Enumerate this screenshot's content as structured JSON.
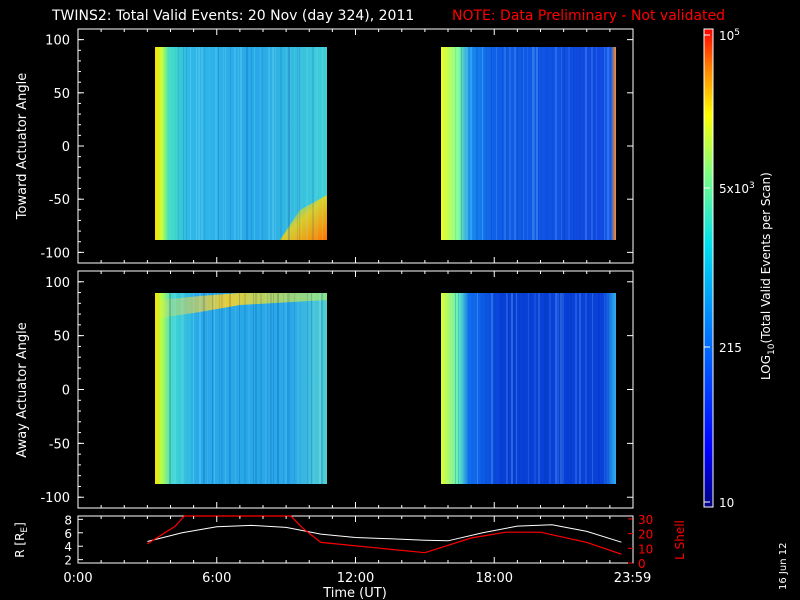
{
  "title": "TWINS2: Total Valid Events: 20 Nov (day 324), 2011",
  "note": "NOTE: Data Preliminary - Not validated",
  "colors": {
    "background": "#000000",
    "axes": "#ffffff",
    "note": "#ff0000",
    "lshell": "#ff0000",
    "r": "#ffffff"
  },
  "panel_top": {
    "ylabel": "Toward Actuator Angle",
    "yticks": [
      "100",
      "50",
      "0",
      "-50",
      "-100"
    ]
  },
  "panel_bottom": {
    "ylabel": "Away Actuator Angle",
    "yticks": [
      "100",
      "50",
      "0",
      "-50",
      "-100"
    ]
  },
  "colorbar": {
    "label_main": "LOG",
    "label_sub": "10",
    "label_rest": "(Total Valid Events per Scan)",
    "ticks": [
      {
        "base": "10",
        "exp": "5"
      },
      {
        "base": "5x10",
        "exp": "3"
      },
      {
        "base": "215",
        "exp": ""
      },
      {
        "base": "10",
        "exp": ""
      }
    ]
  },
  "orbit_panel": {
    "left_label_main": "R [R",
    "left_label_sub": "E",
    "left_label_end": "]",
    "left_ticks": [
      "8",
      "6",
      "4",
      "2"
    ],
    "right_label": "L Shell",
    "right_ticks": [
      "30",
      "20",
      "10",
      "0"
    ]
  },
  "xaxis": {
    "label": "Time (UT)",
    "ticks": [
      "0:00",
      "6:00",
      "12:00",
      "18:00",
      "23:59"
    ]
  },
  "date_stamp": "16 Jun 12",
  "chart_data": [
    {
      "type": "heatmap",
      "title": "Toward Actuator Angle",
      "xlabel": "Time (UT)",
      "ylabel": "Toward Actuator Angle",
      "xlim": [
        0,
        24
      ],
      "ylim": [
        -110,
        110
      ],
      "zscale": "log",
      "zlim": [
        10,
        100000
      ],
      "data_intervals": [
        [
          3.1,
          10.9
        ],
        [
          16.1,
          24.0
        ]
      ],
      "angle_range": [
        -90,
        90
      ]
    },
    {
      "type": "heatmap",
      "title": "Away Actuator Angle",
      "xlabel": "Time (UT)",
      "ylabel": "Away Actuator Angle",
      "xlim": [
        0,
        24
      ],
      "ylim": [
        -110,
        110
      ],
      "zscale": "log",
      "zlim": [
        10,
        100000
      ],
      "data_intervals": [
        [
          3.1,
          10.9
        ],
        [
          16.1,
          24.0
        ]
      ],
      "angle_range": [
        -90,
        90
      ]
    },
    {
      "type": "line",
      "xlabel": "Time (UT)",
      "xlim": [
        0,
        24
      ],
      "series": [
        {
          "name": "R [RE]",
          "axis": "left",
          "ylim": [
            1.5,
            8.5
          ],
          "x": [
            3.0,
            4.5,
            6.0,
            7.5,
            9.0,
            10.5,
            12.0,
            13.5,
            15.0,
            16.0,
            17.5,
            19.0,
            20.5,
            22.0,
            23.5
          ],
          "y": [
            4.7,
            6.0,
            6.9,
            7.1,
            6.8,
            5.8,
            5.3,
            5.1,
            4.9,
            4.8,
            6.0,
            7.0,
            7.2,
            6.2,
            4.6
          ]
        },
        {
          "name": "L Shell",
          "axis": "right",
          "ylim": [
            0,
            32
          ],
          "x": [
            3.0,
            4.2,
            4.6,
            9.2,
            9.7,
            10.5,
            15.0,
            17.0,
            18.5,
            20.0,
            22.0,
            23.5
          ],
          "y": [
            13,
            25,
            32,
            32,
            24,
            14,
            7,
            17,
            21,
            21,
            14,
            6
          ]
        }
      ]
    }
  ]
}
